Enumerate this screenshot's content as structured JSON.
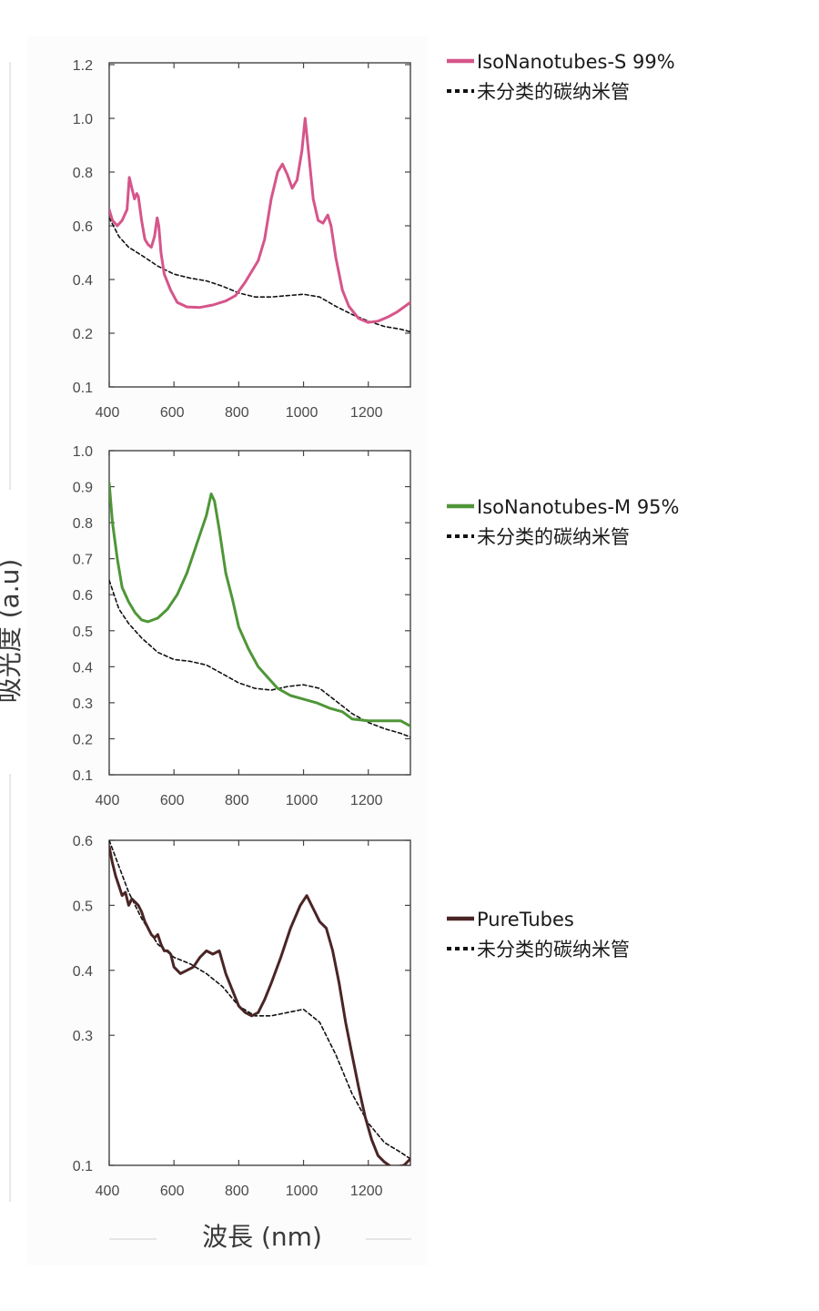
{
  "y_axis_label": "吸光度 (a.u)",
  "x_axis_label": "波長 (nm)",
  "chart_data": [
    {
      "type": "line",
      "title": "",
      "xlabel": "波長 (nm)",
      "ylabel": "吸光度 (a.u)",
      "xlim": [
        400,
        1330
      ],
      "ylim": [
        0.1,
        1.2
      ],
      "y_scale": "log",
      "x_ticks": [
        400,
        600,
        800,
        1000,
        1200
      ],
      "y_ticks": [
        0.1,
        0.2,
        0.4,
        0.6,
        0.8,
        1.0,
        1.2
      ],
      "y_tick_labels": [
        "0.1",
        "0.2",
        "0.4",
        "0.6",
        "0.8",
        "1.0",
        "1.2"
      ],
      "legend_position": "right",
      "series": [
        {
          "name": "IsoNanotubes-S 99%",
          "color": "#d6558a",
          "style": "solid",
          "points": [
            [
              400,
              0.66
            ],
            [
              410,
              0.62
            ],
            [
              425,
              0.6
            ],
            [
              440,
              0.62
            ],
            [
              455,
              0.66
            ],
            [
              462,
              0.78
            ],
            [
              470,
              0.74
            ],
            [
              478,
              0.7
            ],
            [
              485,
              0.72
            ],
            [
              490,
              0.71
            ],
            [
              500,
              0.62
            ],
            [
              510,
              0.55
            ],
            [
              520,
              0.53
            ],
            [
              530,
              0.52
            ],
            [
              540,
              0.56
            ],
            [
              548,
              0.63
            ],
            [
              553,
              0.6
            ],
            [
              560,
              0.5
            ],
            [
              570,
              0.42
            ],
            [
              590,
              0.36
            ],
            [
              610,
              0.315
            ],
            [
              640,
              0.298
            ],
            [
              680,
              0.296
            ],
            [
              720,
              0.305
            ],
            [
              760,
              0.32
            ],
            [
              790,
              0.34
            ],
            [
              820,
              0.39
            ],
            [
              860,
              0.47
            ],
            [
              880,
              0.55
            ],
            [
              900,
              0.7
            ],
            [
              920,
              0.8
            ],
            [
              935,
              0.83
            ],
            [
              950,
              0.79
            ],
            [
              965,
              0.74
            ],
            [
              980,
              0.77
            ],
            [
              995,
              0.88
            ],
            [
              1005,
              1.0
            ],
            [
              1015,
              0.88
            ],
            [
              1030,
              0.7
            ],
            [
              1045,
              0.62
            ],
            [
              1060,
              0.61
            ],
            [
              1075,
              0.64
            ],
            [
              1085,
              0.6
            ],
            [
              1100,
              0.48
            ],
            [
              1120,
              0.36
            ],
            [
              1140,
              0.3
            ],
            [
              1170,
              0.255
            ],
            [
              1200,
              0.24
            ],
            [
              1230,
              0.245
            ],
            [
              1260,
              0.26
            ],
            [
              1290,
              0.28
            ],
            [
              1330,
              0.315
            ]
          ]
        },
        {
          "name": "未分类的碳纳米管",
          "color": "#111111",
          "style": "dotted",
          "points": [
            [
              400,
              0.63
            ],
            [
              430,
              0.56
            ],
            [
              460,
              0.52
            ],
            [
              500,
              0.49
            ],
            [
              550,
              0.45
            ],
            [
              600,
              0.42
            ],
            [
              650,
              0.405
            ],
            [
              700,
              0.395
            ],
            [
              750,
              0.375
            ],
            [
              800,
              0.35
            ],
            [
              850,
              0.335
            ],
            [
              900,
              0.335
            ],
            [
              950,
              0.34
            ],
            [
              1000,
              0.345
            ],
            [
              1050,
              0.335
            ],
            [
              1100,
              0.3
            ],
            [
              1150,
              0.27
            ],
            [
              1200,
              0.245
            ],
            [
              1250,
              0.225
            ],
            [
              1300,
              0.215
            ],
            [
              1330,
              0.205
            ]
          ]
        }
      ]
    },
    {
      "type": "line",
      "title": "",
      "xlabel": "波長 (nm)",
      "ylabel": "吸光度 (a.u)",
      "xlim": [
        400,
        1330
      ],
      "ylim": [
        0.1,
        1.0
      ],
      "y_scale": "linear",
      "x_ticks": [
        400,
        600,
        800,
        1000,
        1200
      ],
      "y_ticks": [
        0.1,
        0.2,
        0.3,
        0.4,
        0.5,
        0.6,
        0.7,
        0.8,
        0.9,
        1.0
      ],
      "y_tick_labels": [
        "0.1",
        "0.2",
        "0.3",
        "0.4",
        "0.5",
        "0.6",
        "0.7",
        "0.8",
        "0.9",
        "1.0"
      ],
      "legend_position": "right",
      "series": [
        {
          "name": "IsoNanotubes-M 95%",
          "color": "#4f9638",
          "style": "solid",
          "points": [
            [
              400,
              0.91
            ],
            [
              410,
              0.8
            ],
            [
              425,
              0.7
            ],
            [
              440,
              0.62
            ],
            [
              460,
              0.58
            ],
            [
              480,
              0.55
            ],
            [
              500,
              0.53
            ],
            [
              520,
              0.525
            ],
            [
              550,
              0.535
            ],
            [
              580,
              0.56
            ],
            [
              610,
              0.6
            ],
            [
              640,
              0.66
            ],
            [
              670,
              0.74
            ],
            [
              700,
              0.82
            ],
            [
              715,
              0.88
            ],
            [
              725,
              0.86
            ],
            [
              740,
              0.78
            ],
            [
              760,
              0.66
            ],
            [
              780,
              0.59
            ],
            [
              800,
              0.51
            ],
            [
              830,
              0.45
            ],
            [
              860,
              0.4
            ],
            [
              890,
              0.37
            ],
            [
              920,
              0.34
            ],
            [
              960,
              0.32
            ],
            [
              1000,
              0.31
            ],
            [
              1040,
              0.3
            ],
            [
              1080,
              0.285
            ],
            [
              1120,
              0.275
            ],
            [
              1150,
              0.255
            ],
            [
              1200,
              0.25
            ],
            [
              1250,
              0.25
            ],
            [
              1300,
              0.25
            ],
            [
              1330,
              0.235
            ]
          ]
        },
        {
          "name": "未分类的碳纳米管",
          "color": "#111111",
          "style": "dotted",
          "points": [
            [
              400,
              0.64
            ],
            [
              430,
              0.56
            ],
            [
              460,
              0.52
            ],
            [
              500,
              0.48
            ],
            [
              550,
              0.44
            ],
            [
              600,
              0.42
            ],
            [
              650,
              0.415
            ],
            [
              700,
              0.405
            ],
            [
              750,
              0.38
            ],
            [
              800,
              0.355
            ],
            [
              850,
              0.34
            ],
            [
              900,
              0.335
            ],
            [
              950,
              0.345
            ],
            [
              1000,
              0.35
            ],
            [
              1050,
              0.34
            ],
            [
              1100,
              0.305
            ],
            [
              1150,
              0.27
            ],
            [
              1200,
              0.245
            ],
            [
              1250,
              0.228
            ],
            [
              1300,
              0.215
            ],
            [
              1330,
              0.205
            ]
          ]
        }
      ]
    },
    {
      "type": "line",
      "title": "",
      "xlabel": "波長 (nm)",
      "ylabel": "吸光度 (a.u)",
      "xlim": [
        400,
        1330
      ],
      "ylim": [
        0.1,
        0.6
      ],
      "y_scale": "linear",
      "x_ticks": [
        400,
        600,
        800,
        1000,
        1200
      ],
      "y_ticks": [
        0.1,
        0.3,
        0.4,
        0.5,
        0.6
      ],
      "y_tick_labels": [
        "0.1",
        "0.3",
        "0.4",
        "0.5",
        "0.6"
      ],
      "legend_position": "right",
      "series": [
        {
          "name": "PureTubes",
          "color": "#4a2525",
          "style": "solid",
          "points": [
            [
              400,
              0.59
            ],
            [
              410,
              0.565
            ],
            [
              420,
              0.545
            ],
            [
              430,
              0.53
            ],
            [
              440,
              0.515
            ],
            [
              450,
              0.52
            ],
            [
              460,
              0.5
            ],
            [
              470,
              0.51
            ],
            [
              480,
              0.505
            ],
            [
              490,
              0.5
            ],
            [
              500,
              0.49
            ],
            [
              510,
              0.475
            ],
            [
              520,
              0.465
            ],
            [
              530,
              0.455
            ],
            [
              540,
              0.45
            ],
            [
              550,
              0.455
            ],
            [
              560,
              0.44
            ],
            [
              570,
              0.43
            ],
            [
              580,
              0.43
            ],
            [
              590,
              0.425
            ],
            [
              600,
              0.405
            ],
            [
              620,
              0.395
            ],
            [
              640,
              0.4
            ],
            [
              660,
              0.405
            ],
            [
              680,
              0.42
            ],
            [
              700,
              0.43
            ],
            [
              720,
              0.425
            ],
            [
              740,
              0.43
            ],
            [
              760,
              0.395
            ],
            [
              780,
              0.37
            ],
            [
              800,
              0.345
            ],
            [
              820,
              0.335
            ],
            [
              840,
              0.33
            ],
            [
              860,
              0.335
            ],
            [
              880,
              0.355
            ],
            [
              900,
              0.38
            ],
            [
              930,
              0.42
            ],
            [
              960,
              0.465
            ],
            [
              990,
              0.5
            ],
            [
              1010,
              0.515
            ],
            [
              1030,
              0.495
            ],
            [
              1050,
              0.475
            ],
            [
              1070,
              0.465
            ],
            [
              1090,
              0.43
            ],
            [
              1110,
              0.38
            ],
            [
              1130,
              0.32
            ],
            [
              1150,
              0.27
            ],
            [
              1170,
              0.22
            ],
            [
              1190,
              0.175
            ],
            [
              1210,
              0.14
            ],
            [
              1230,
              0.115
            ],
            [
              1250,
              0.105
            ],
            [
              1270,
              0.098
            ],
            [
              1290,
              0.098
            ],
            [
              1310,
              0.1
            ],
            [
              1330,
              0.11
            ]
          ]
        },
        {
          "name": "未分类的碳纳米管",
          "color": "#111111",
          "style": "dotted",
          "points": [
            [
              400,
              0.6
            ],
            [
              430,
              0.56
            ],
            [
              460,
              0.52
            ],
            [
              500,
              0.48
            ],
            [
              550,
              0.44
            ],
            [
              600,
              0.42
            ],
            [
              650,
              0.41
            ],
            [
              700,
              0.395
            ],
            [
              750,
              0.375
            ],
            [
              800,
              0.345
            ],
            [
              850,
              0.33
            ],
            [
              900,
              0.33
            ],
            [
              950,
              0.335
            ],
            [
              1000,
              0.34
            ],
            [
              1050,
              0.32
            ],
            [
              1100,
              0.27
            ],
            [
              1150,
              0.21
            ],
            [
              1200,
              0.165
            ],
            [
              1250,
              0.135
            ],
            [
              1300,
              0.12
            ],
            [
              1330,
              0.11
            ]
          ]
        }
      ]
    }
  ]
}
